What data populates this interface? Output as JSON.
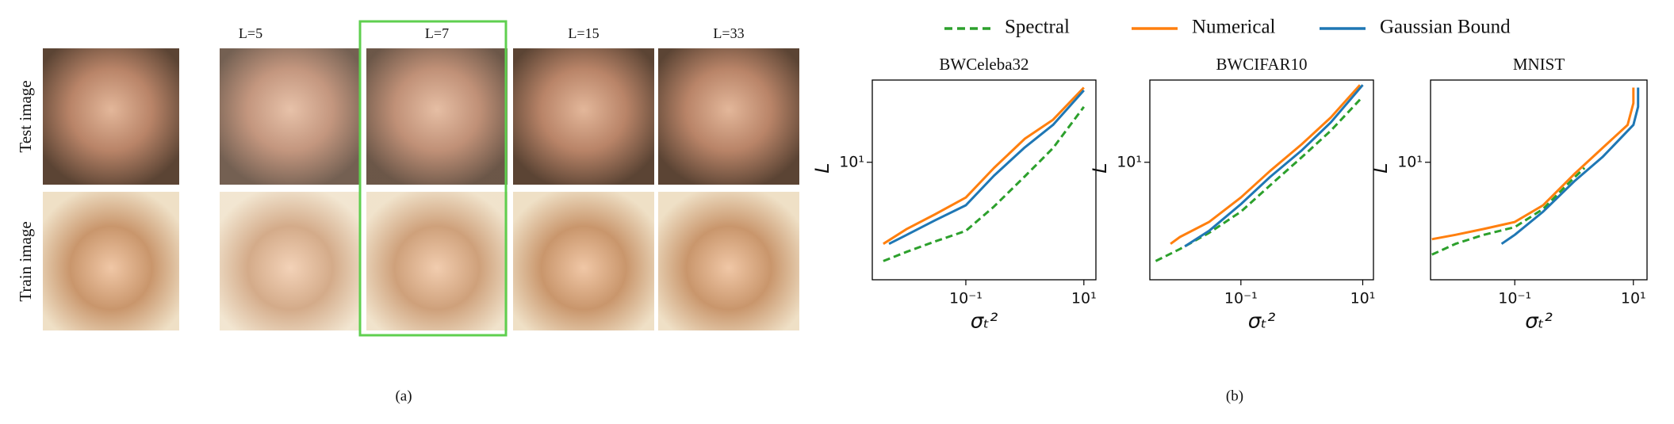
{
  "panel_a": {
    "column_labels": [
      "L=5",
      "L=7",
      "L=15",
      "L=33"
    ],
    "row_labels": [
      "Test image",
      "Train image"
    ],
    "caption": "(a)"
  },
  "panel_b": {
    "caption": "(b)"
  },
  "chart_data": [
    {
      "type": "line",
      "title": "BWCeleba32",
      "xlabel": "σₜ²",
      "ylabel": "L",
      "log_x": true,
      "log_y": true,
      "xlim": [
        0.0026,
        16
      ],
      "ylim": [
        1.13,
        46
      ],
      "xticks": [
        {
          "value": 0.1,
          "label": "10⁻¹"
        },
        {
          "value": 10,
          "label": "10¹"
        }
      ],
      "yticks": [
        {
          "value": 10,
          "label": "10¹"
        }
      ],
      "series": [
        {
          "name": "Spectral",
          "color": "#2ca02c",
          "dash": true,
          "x": [
            0.004,
            0.01,
            0.03,
            0.1,
            0.3,
            1,
            3,
            10
          ],
          "values": [
            1.6,
            1.9,
            2.3,
            2.8,
            4.4,
            7.7,
            13,
            28
          ]
        },
        {
          "name": "Numerical",
          "color": "#ff7f0e",
          "dash": false,
          "x": [
            0.004,
            0.01,
            0.03,
            0.1,
            0.3,
            1,
            3,
            10
          ],
          "values": [
            2.2,
            2.9,
            3.8,
            5.2,
            9,
            15.5,
            22,
            40
          ]
        },
        {
          "name": "Gaussian Bound",
          "color": "#1f77b4",
          "dash": false,
          "x": [
            0.005,
            0.01,
            0.03,
            0.1,
            0.3,
            1,
            3,
            10
          ],
          "values": [
            2.2,
            2.6,
            3.4,
            4.5,
            7.8,
            13.2,
            20,
            38
          ]
        }
      ]
    },
    {
      "type": "line",
      "title": "BWCIFAR10",
      "xlabel": "σₜ²",
      "ylabel": "L",
      "log_x": true,
      "log_y": true,
      "xlim": [
        0.0032,
        15
      ],
      "ylim": [
        1.13,
        46
      ],
      "xticks": [
        {
          "value": 0.1,
          "label": "10⁻¹"
        },
        {
          "value": 10,
          "label": "10¹"
        }
      ],
      "yticks": [
        {
          "value": 10,
          "label": "10¹"
        }
      ],
      "series": [
        {
          "name": "Spectral",
          "color": "#2ca02c",
          "dash": true,
          "x": [
            0.004,
            0.01,
            0.03,
            0.1,
            0.3,
            1,
            3,
            9
          ],
          "values": [
            1.6,
            2.0,
            2.7,
            4.0,
            6.5,
            11,
            18,
            32
          ]
        },
        {
          "name": "Numerical",
          "color": "#ff7f0e",
          "dash": false,
          "x": [
            0.007,
            0.01,
            0.03,
            0.1,
            0.3,
            1,
            3,
            9
          ],
          "values": [
            2.2,
            2.5,
            3.3,
            5.2,
            8.5,
            14,
            23,
            42
          ]
        },
        {
          "name": "Gaussian Bound",
          "color": "#1f77b4",
          "dash": false,
          "x": [
            0.012,
            0.03,
            0.1,
            0.3,
            1,
            3,
            10
          ],
          "values": [
            2.1,
            2.8,
            4.6,
            7.6,
            12.5,
            21,
            42
          ]
        }
      ]
    },
    {
      "type": "line",
      "title": "MNIST",
      "xlabel": "σₜ²",
      "ylabel": "L",
      "log_x": true,
      "log_y": true,
      "xlim": [
        0.0038,
        17
      ],
      "ylim": [
        1.13,
        46
      ],
      "xticks": [
        {
          "value": 0.1,
          "label": "10⁻¹"
        },
        {
          "value": 10,
          "label": "10¹"
        }
      ],
      "yticks": [
        {
          "value": 10,
          "label": "10¹"
        }
      ],
      "series": [
        {
          "name": "Spectral",
          "color": "#2ca02c",
          "dash": true,
          "x": [
            0.004,
            0.01,
            0.03,
            0.1,
            0.3,
            1,
            1.5
          ],
          "values": [
            1.8,
            2.2,
            2.6,
            3.0,
            4.2,
            7.5,
            9
          ]
        },
        {
          "name": "Numerical",
          "color": "#ff7f0e",
          "dash": false,
          "x": [
            0.004,
            0.01,
            0.03,
            0.1,
            0.3,
            1,
            3,
            8,
            10,
            10
          ],
          "values": [
            2.4,
            2.6,
            2.9,
            3.3,
            4.5,
            8,
            13,
            20,
            30,
            40
          ]
        },
        {
          "name": "Gaussian Bound",
          "color": "#1f77b4",
          "dash": false,
          "x": [
            0.06,
            0.1,
            0.3,
            1,
            3,
            10,
            12,
            12
          ],
          "values": [
            2.2,
            2.6,
            4,
            7,
            11,
            20,
            28,
            40
          ]
        }
      ]
    }
  ]
}
